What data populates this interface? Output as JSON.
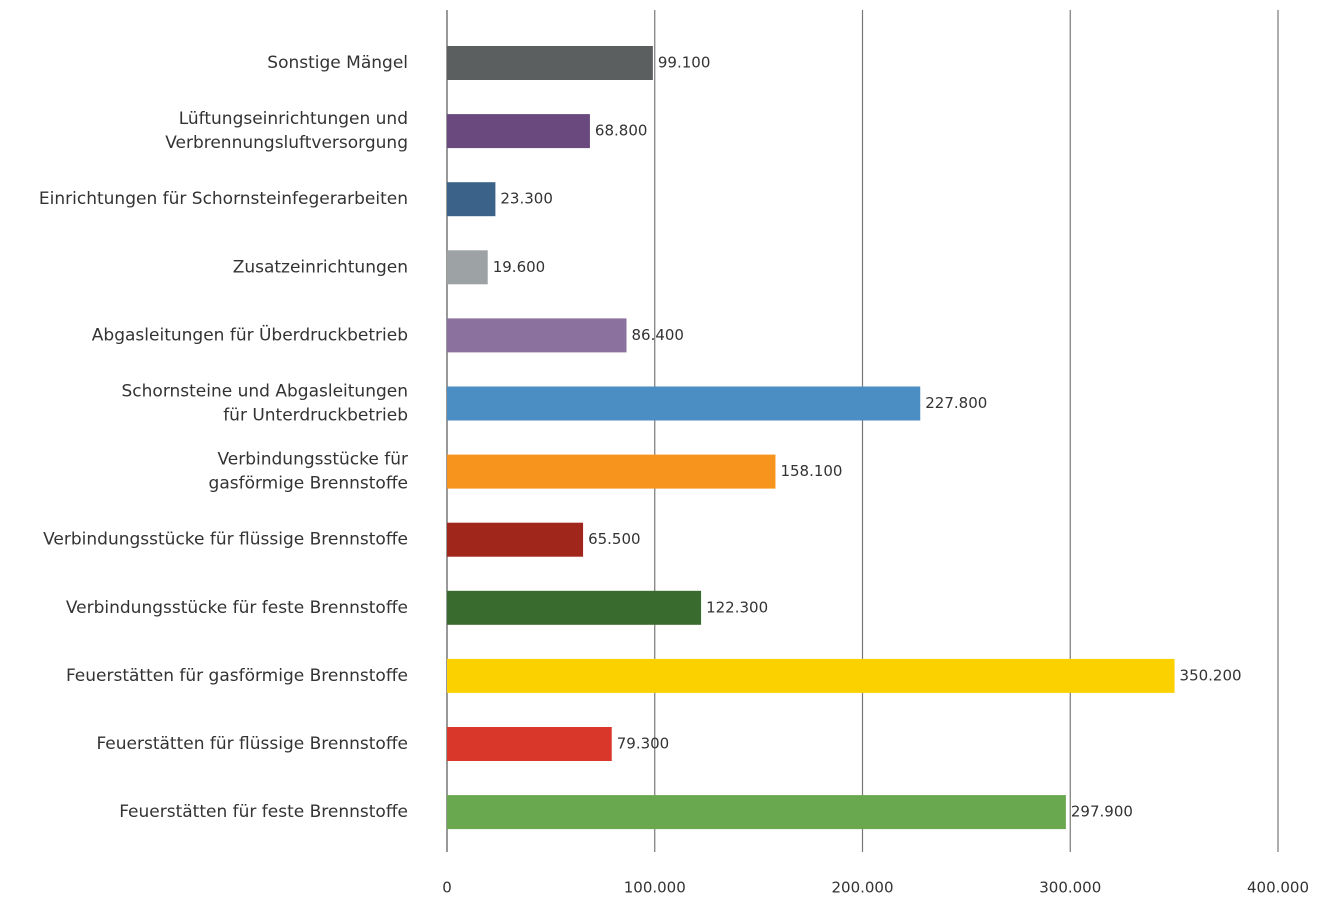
{
  "chart_data": {
    "type": "hbar",
    "categories": [
      "Sonstige Mängel",
      "Lüftungseinrichtungen und\nVerbrennungsluftversorgung",
      "Einrichtungen für Schornsteinfegerarbeiten",
      "Zusatzeinrichtungen",
      "Abgasleitungen für Überdruckbetrieb",
      "Schornsteine und Abgasleitungen\nfür Unterdruckbetrieb",
      "Verbindungsstücke für\ngasförmige Brennstoffe",
      "Verbindungsstücke für flüssige Brennstoffe",
      "Verbindungsstücke für feste Brennstoffe",
      "Feuerstätten für gasförmige Brennstoffe",
      "Feuerstätten für flüssige Brennstoffe",
      "Feuerstätten für feste Brennstoffe"
    ],
    "values": [
      99100,
      68800,
      23300,
      19600,
      86400,
      227800,
      158100,
      65500,
      122300,
      350200,
      79300,
      297900
    ],
    "value_labels": [
      "99.100",
      "68.800",
      "23.300",
      "19.600",
      "86.400",
      "227.800",
      "158.100",
      "65.500",
      "122.300",
      "350.200",
      "79.300",
      "297.900"
    ],
    "colors": [
      "#5c5f60",
      "#6a4a7e",
      "#3b6389",
      "#9da2a4",
      "#8b729e",
      "#4a8ec4",
      "#f7941d",
      "#a0251a",
      "#3a6b2e",
      "#fcd100",
      "#d9372a",
      "#6aa84f"
    ],
    "xlim": [
      0,
      400000
    ],
    "xticks": [
      0,
      {
        "value": 100000,
        "label": "100.000"
      },
      {
        "value": 200000,
        "label": "200.000"
      },
      {
        "value": 300000,
        "label": "300.000"
      },
      {
        "value": 400000,
        "label": "400.000"
      }
    ],
    "grid": true
  }
}
